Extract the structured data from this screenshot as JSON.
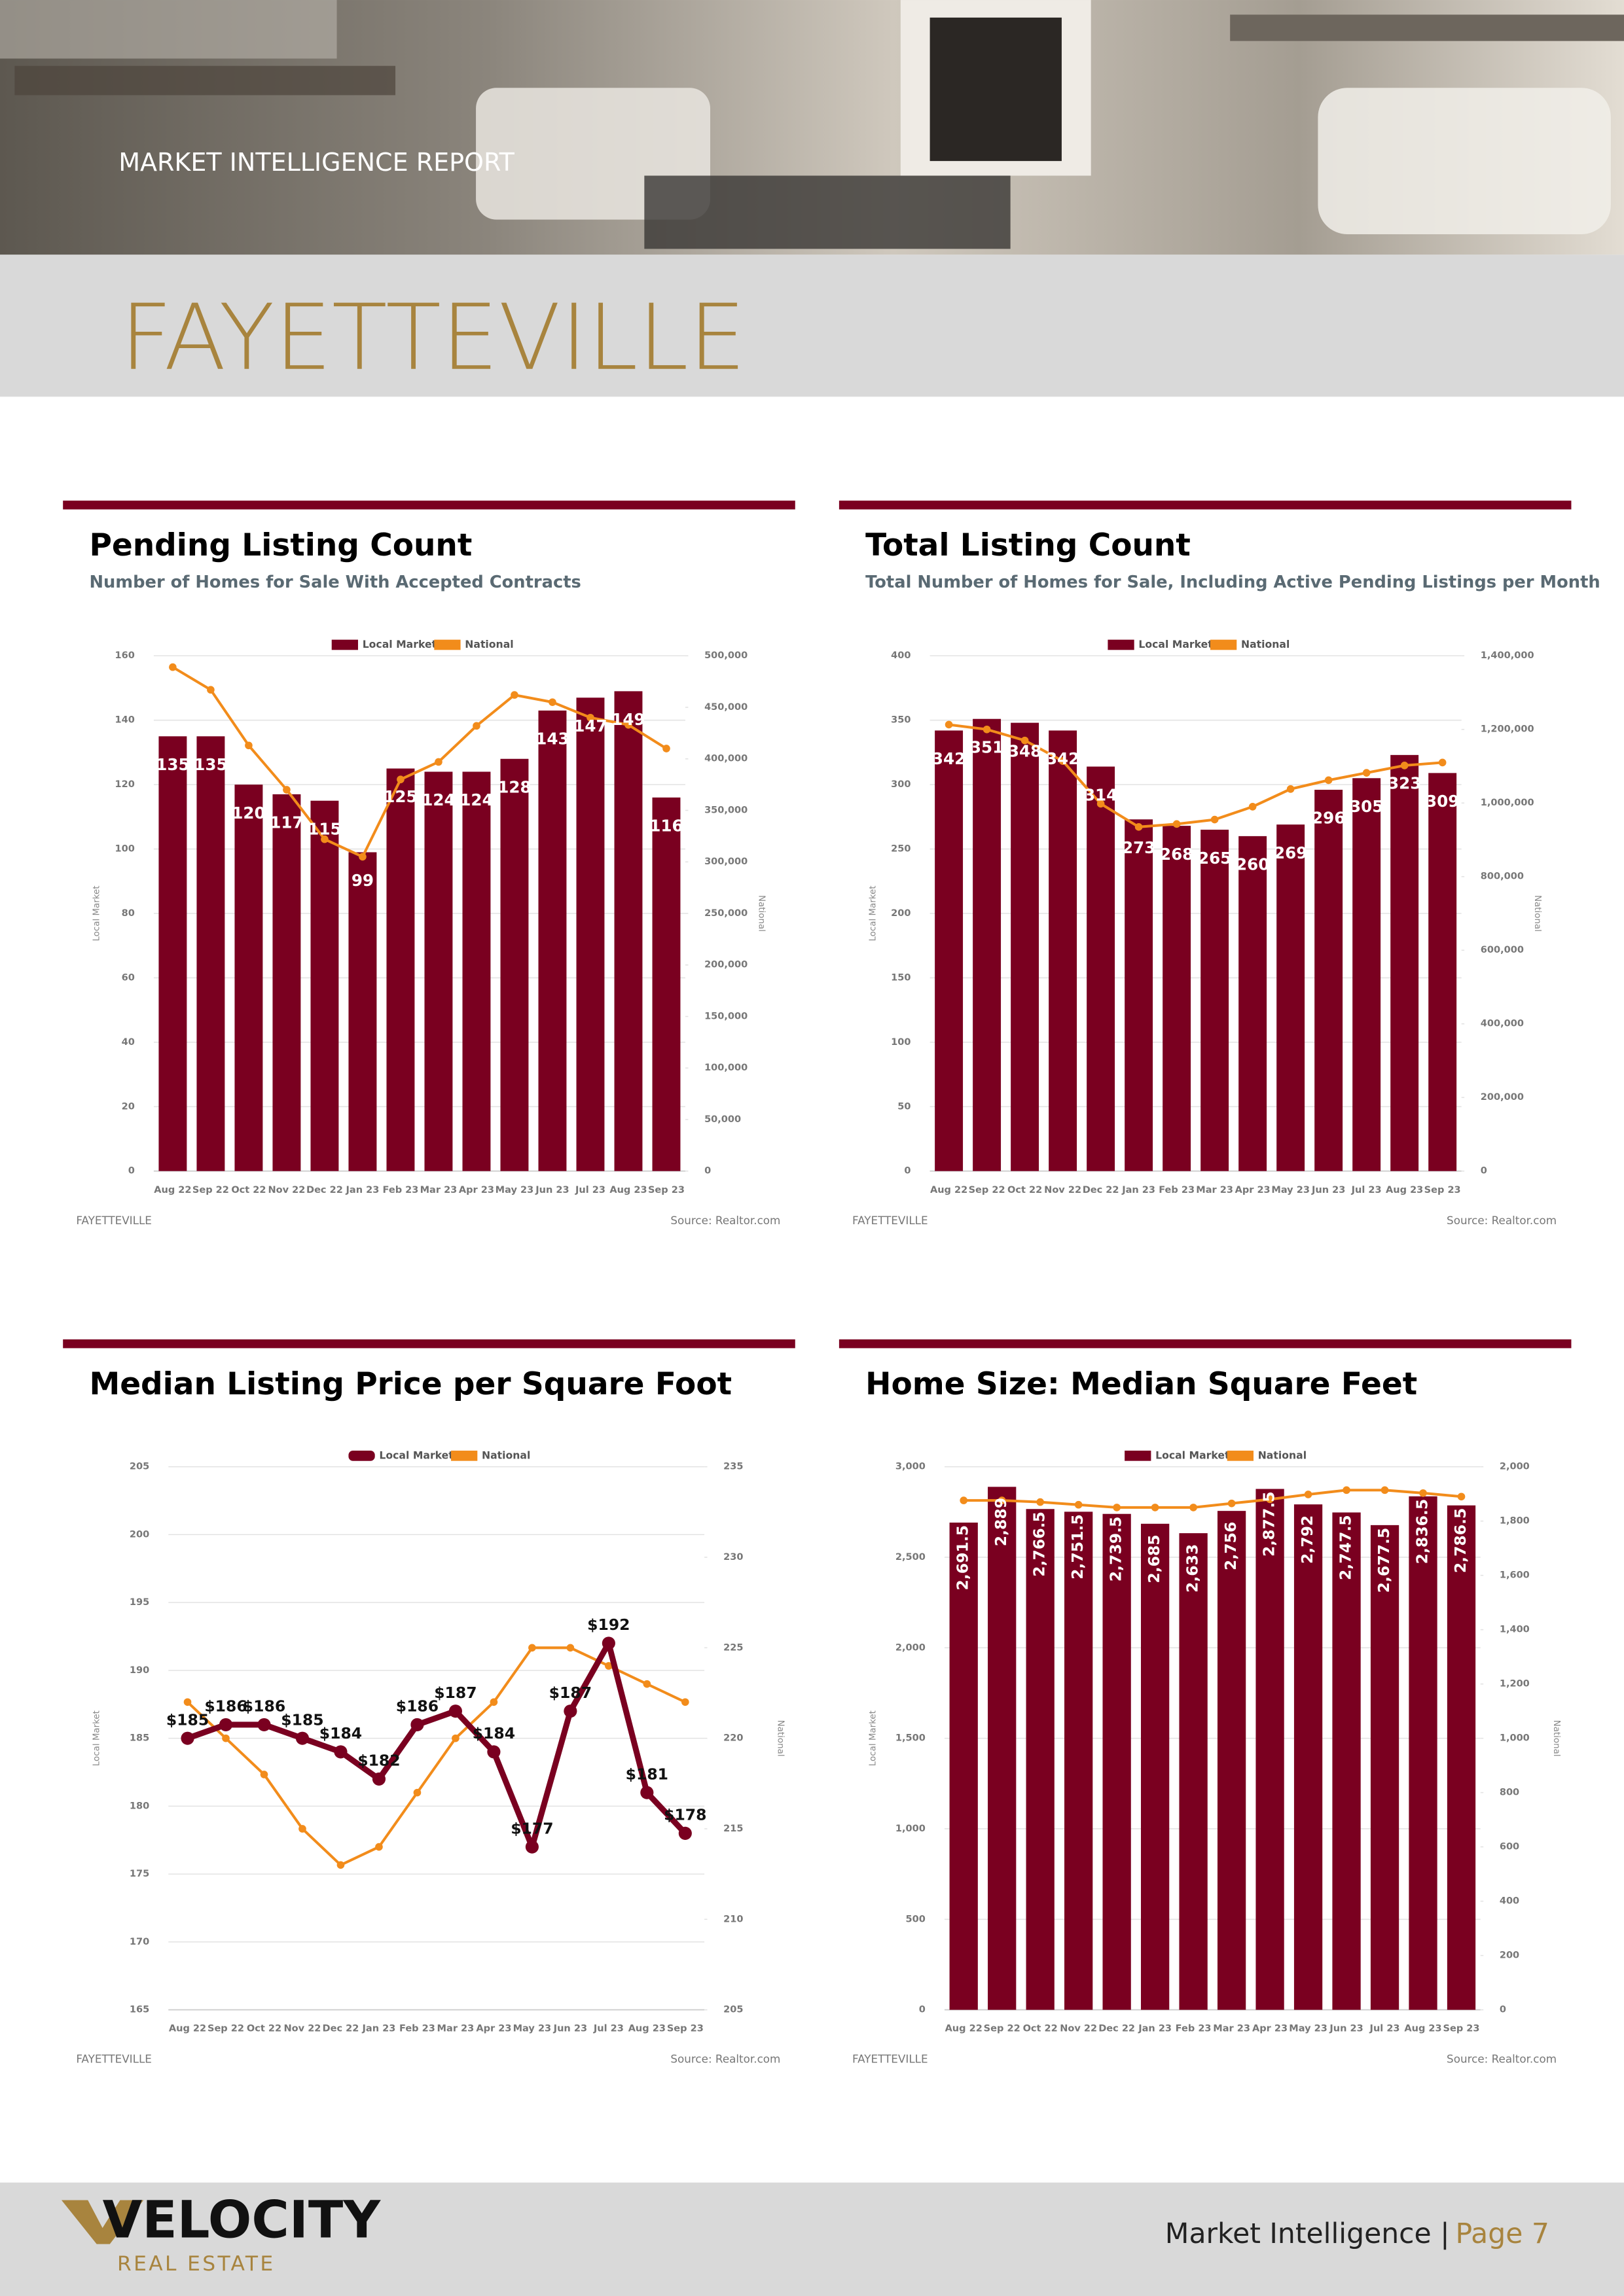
{
  "header": {
    "kicker": "MARKET INTELLIGENCE REPORT",
    "city": "FAYETTEVILLE"
  },
  "footer": {
    "brand": "VELOCITY",
    "tagline": "REAL ESTATE",
    "label": "Market Intelligence |",
    "page": "Page 7"
  },
  "chart_data": [
    {
      "type": "bar",
      "title": "Pending Listing Count",
      "subtitle": "Number of Homes for Sale With Accepted Contracts",
      "location": "FAYETTEVILLE",
      "source": "Source: Realtor.com",
      "y_label": "Local Market",
      "y2_label": "National",
      "categories": [
        "Aug 22",
        "Sep 22",
        "Oct 22",
        "Nov 22",
        "Dec 22",
        "Jan 23",
        "Feb 23",
        "Mar 23",
        "Apr 23",
        "May 23",
        "Jun 23",
        "Jul 23",
        "Aug 23",
        "Sep 23"
      ],
      "series": [
        {
          "name": "Local Market",
          "color": "#7a0020",
          "values": [
            135,
            135,
            120,
            117,
            115,
            99,
            125,
            124,
            124,
            128,
            143,
            147,
            149,
            116
          ]
        },
        {
          "name": "National",
          "color": "#f28c1b",
          "axis": "y2",
          "values": [
            489000,
            467000,
            413000,
            370000,
            322000,
            305000,
            380000,
            397000,
            432000,
            462000,
            455000,
            440000,
            433000,
            410000
          ]
        }
      ],
      "ylim": [
        0,
        160
      ],
      "yticks": [
        0,
        20,
        40,
        60,
        80,
        100,
        120,
        140,
        160
      ],
      "y2lim": [
        0,
        500000
      ],
      "y2ticks": [
        0,
        {
          "value": 50000,
          "label": "50,000"
        },
        {
          "value": 100000,
          "label": "100,000"
        },
        {
          "value": 150000,
          "label": "150,000"
        },
        {
          "value": 200000,
          "label": "200,000"
        },
        {
          "value": 250000,
          "label": "250,000"
        },
        {
          "value": 300000,
          "label": "300,000"
        },
        {
          "value": 350000,
          "label": "350,000"
        },
        {
          "value": 400000,
          "label": "400,000"
        },
        {
          "value": 450000,
          "label": "450,000"
        },
        {
          "value": 500000,
          "label": "500,000"
        }
      ],
      "grid": true
    },
    {
      "type": "bar",
      "title": "Total Listing Count",
      "subtitle": "Total Number of Homes for Sale, Including Active Pending Listings per Month",
      "location": "FAYETTEVILLE",
      "source": "Source: Realtor.com",
      "y_label": "Local Market",
      "y2_label": "National",
      "categories": [
        "Aug 22",
        "Sep 22",
        "Oct 22",
        "Nov 22",
        "Dec 22",
        "Jan 23",
        "Feb 23",
        "Mar 23",
        "Apr 23",
        "May 23",
        "Jun 23",
        "Jul 23",
        "Aug 23",
        "Sep 23"
      ],
      "series": [
        {
          "name": "Local Market",
          "color": "#7a0020",
          "values": [
            342,
            351,
            348,
            342,
            314,
            273,
            268,
            265,
            260,
            269,
            296,
            305,
            323,
            309
          ]
        },
        {
          "name": "National",
          "color": "#f28c1b",
          "axis": "y2",
          "values": [
            1213000,
            1200000,
            1170000,
            1114000,
            998000,
            935000,
            943000,
            955000,
            990000,
            1038000,
            1062000,
            1082000,
            1102000,
            1110000
          ]
        }
      ],
      "ylim": [
        0,
        400
      ],
      "yticks": [
        0,
        50,
        100,
        150,
        200,
        250,
        300,
        350,
        400
      ],
      "y2lim": [
        0,
        1400000
      ],
      "y2ticks": [
        0,
        {
          "value": 200000,
          "label": "200,000"
        },
        {
          "value": 400000,
          "label": "400,000"
        },
        {
          "value": 600000,
          "label": "600,000"
        },
        {
          "value": 800000,
          "label": "800,000"
        },
        {
          "value": 1000000,
          "label": "1,000,000"
        },
        {
          "value": 1200000,
          "label": "1,200,000"
        },
        {
          "value": 1400000,
          "label": "1,400,000"
        }
      ],
      "grid": true
    },
    {
      "type": "line",
      "title": "Median Listing Price per Square Foot",
      "location": "FAYETTEVILLE",
      "source": "Source: Realtor.com",
      "y_label": "Local Market",
      "y2_label": "National",
      "categories": [
        "Aug 22",
        "Sep 22",
        "Oct 22",
        "Nov 22",
        "Dec 22",
        "Jan 23",
        "Feb 23",
        "Mar 23",
        "Apr 23",
        "May 23",
        "Jun 23",
        "Jul 23",
        "Aug 23",
        "Sep 23"
      ],
      "series": [
        {
          "name": "Local Market",
          "color": "#7a0020",
          "values": [
            185,
            186,
            186,
            185,
            184,
            182,
            186,
            187,
            184,
            177,
            187,
            192,
            181,
            178
          ],
          "value_labels": [
            "$185",
            "$186",
            "$186",
            "$185",
            "$184",
            "$182",
            "$186",
            "$187",
            "$184",
            "$177",
            "$187",
            "$192",
            "$181",
            "$178"
          ]
        },
        {
          "name": "National",
          "color": "#f28c1b",
          "axis": "y2",
          "values": [
            222,
            220,
            218,
            215,
            213,
            214,
            217,
            220,
            222,
            225,
            225,
            224,
            223,
            222
          ]
        }
      ],
      "ylim": [
        165,
        205
      ],
      "yticks": [
        165,
        170,
        175,
        180,
        185,
        190,
        195,
        200,
        205
      ],
      "y2lim": [
        205,
        235
      ],
      "y2ticks": [
        205,
        210,
        215,
        220,
        225,
        230,
        235
      ],
      "grid": true
    },
    {
      "type": "bar",
      "title": "Home Size: Median Square Feet",
      "location": "FAYETTEVILLE",
      "source": "Source: Realtor.com",
      "y_label": "Local Market",
      "y2_label": "National",
      "categories": [
        "Aug 22",
        "Sep 22",
        "Oct 22",
        "Nov 22",
        "Dec 22",
        "Jan 23",
        "Feb 23",
        "Mar 23",
        "Apr 23",
        "May 23",
        "Jun 23",
        "Jul 23",
        "Aug 23",
        "Sep 23"
      ],
      "series": [
        {
          "name": "Local Market",
          "color": "#7a0020",
          "values": [
            2691.5,
            2889,
            2766.5,
            2751.5,
            2739.5,
            2685,
            2633,
            2756,
            2877.5,
            2792,
            2747.5,
            2677.5,
            2836.5,
            2786.5
          ],
          "value_labels": [
            "2,691.5",
            "2,889",
            "2,766.5",
            "2,751.5",
            "2,739.5",
            "2,685",
            "2,633",
            "2,756",
            "2,877.5",
            "2,792",
            "2,747.5",
            "2,677.5",
            "2,836.5",
            "2,786.5"
          ]
        },
        {
          "name": "National",
          "color": "#f28c1b",
          "axis": "y2",
          "values": [
            1876,
            1876,
            1870,
            1860,
            1850,
            1850,
            1850,
            1865,
            1880,
            1898,
            1914,
            1914,
            1903,
            1890
          ]
        }
      ],
      "ylim": [
        0,
        3000
      ],
      "yticks": [
        0,
        500,
        {
          "value": 1000,
          "label": "1,000"
        },
        {
          "value": 1500,
          "label": "1,500"
        },
        {
          "value": 2000,
          "label": "2,000"
        },
        {
          "value": 2500,
          "label": "2,500"
        },
        {
          "value": 3000,
          "label": "3,000"
        }
      ],
      "y2lim": [
        0,
        2000
      ],
      "y2ticks": [
        0,
        200,
        400,
        600,
        800,
        {
          "value": 1000,
          "label": "1,000"
        },
        {
          "value": 1200,
          "label": "1,200"
        },
        {
          "value": 1400,
          "label": "1,400"
        },
        {
          "value": 1600,
          "label": "1,600"
        },
        {
          "value": 1800,
          "label": "1,800"
        },
        {
          "value": 2000,
          "label": "2,000"
        }
      ],
      "grid": true
    }
  ]
}
